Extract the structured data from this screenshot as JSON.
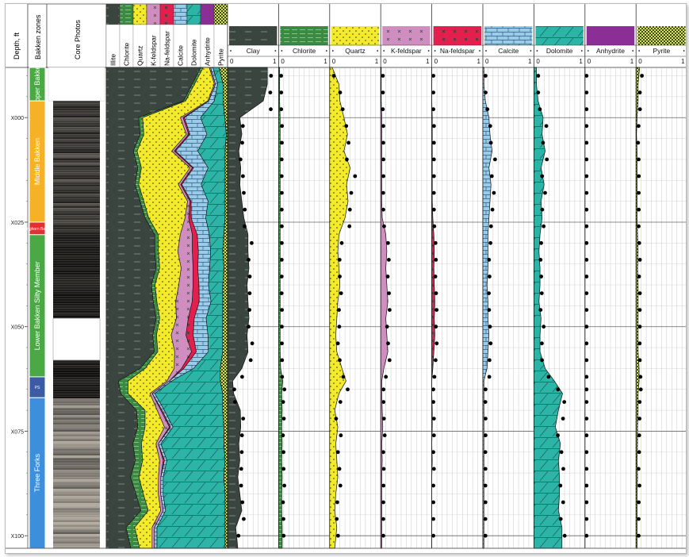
{
  "chart_data": {
    "type": "well-log",
    "depth_axis": {
      "label": "Depth, ft",
      "ticks": [
        "X000",
        "X025",
        "X050",
        "X075",
        "X100"
      ],
      "range": [
        -12,
        103
      ]
    },
    "zones_header": "Bakken zones",
    "photos_header": "Core Photos",
    "zones": [
      {
        "name": "Upper Bakken",
        "top": -12,
        "base": -4,
        "color": "#4aa845"
      },
      {
        "name": "Middle Bakken",
        "top": -4,
        "base": 25,
        "color": "#f6b226"
      },
      {
        "name": "Pronghorn Bakken",
        "top": 25,
        "base": 28,
        "color": "#e23030"
      },
      {
        "name": "Lower Bakken Silty Member",
        "top": 28,
        "base": 62,
        "color": "#4aa845"
      },
      {
        "name": "PS",
        "top": 62,
        "base": 67,
        "color": "#3b5ba6"
      },
      {
        "name": "Three Forks",
        "top": 67,
        "base": 103,
        "color": "#3d8fdc"
      }
    ],
    "stack_legend": [
      "Illite",
      "Chlorite",
      "Quartz",
      "K-feldspar",
      "Na-feldspar",
      "Calcite",
      "Dolomite",
      "Anhydrite",
      "Pyrite"
    ],
    "minerals": [
      {
        "name": "Clay",
        "color": "#3b4540"
      },
      {
        "name": "Chlorite",
        "color": "#3a8a45"
      },
      {
        "name": "Quartz",
        "color": "#f2ea2b"
      },
      {
        "name": "K-feldspar",
        "color": "#d08dc0"
      },
      {
        "name": "Na-feldspar",
        "color": "#e31f4e"
      },
      {
        "name": "Calcite",
        "color": "#9ccbe8"
      },
      {
        "name": "Dolomite",
        "color": "#2cb5a7"
      },
      {
        "name": "Anhydrite",
        "color": "#8b2f96"
      },
      {
        "name": "Pyrite",
        "color": "#8fa13a"
      }
    ],
    "track_scale": {
      "min": "0",
      "max": "1"
    },
    "profiles": {
      "depths": [
        -12,
        -8,
        -4,
        0,
        4,
        8,
        12,
        16,
        20,
        24,
        28,
        32,
        36,
        40,
        44,
        48,
        52,
        56,
        60,
        63,
        66,
        70,
        74,
        78,
        82,
        86,
        90,
        94,
        98,
        103
      ],
      "Clay": [
        0.78,
        0.78,
        0.7,
        0.24,
        0.28,
        0.22,
        0.26,
        0.24,
        0.28,
        0.32,
        0.4,
        0.4,
        0.42,
        0.38,
        0.4,
        0.42,
        0.38,
        0.4,
        0.28,
        0.1,
        0.12,
        0.25,
        0.26,
        0.22,
        0.24,
        0.2,
        0.24,
        0.28,
        0.16,
        0.2
      ],
      "Chlorite": [
        0.02,
        0.02,
        0.02,
        0.03,
        0.03,
        0.03,
        0.03,
        0.03,
        0.03,
        0.03,
        0.03,
        0.03,
        0.03,
        0.03,
        0.03,
        0.03,
        0.03,
        0.03,
        0.04,
        0.08,
        0.06,
        0.07,
        0.06,
        0.07,
        0.06,
        0.07,
        0.06,
        0.06,
        0.07,
        0.07
      ],
      "Quartz": [
        0.05,
        0.18,
        0.2,
        0.28,
        0.35,
        0.28,
        0.4,
        0.33,
        0.36,
        0.3,
        0.18,
        0.16,
        0.18,
        0.2,
        0.16,
        0.14,
        0.12,
        0.14,
        0.24,
        0.32,
        0.18,
        0.1,
        0.16,
        0.12,
        0.14,
        0.16,
        0.12,
        0.1,
        0.14,
        0.1
      ],
      "K-feldspar": [
        0.01,
        0.01,
        0.01,
        0.02,
        0.02,
        0.02,
        0.02,
        0.02,
        0.02,
        0.03,
        0.1,
        0.12,
        0.1,
        0.12,
        0.14,
        0.1,
        0.12,
        0.14,
        0.06,
        0.02,
        0.02,
        0.03,
        0.04,
        0.02,
        0.03,
        0.02,
        0.02,
        0.02,
        0.02,
        0.02
      ],
      "Na-feldspar": [
        0.0,
        0.0,
        0.0,
        0.01,
        0.01,
        0.01,
        0.01,
        0.01,
        0.01,
        0.02,
        0.04,
        0.05,
        0.04,
        0.05,
        0.06,
        0.05,
        0.06,
        0.04,
        0.02,
        0.0,
        0.0,
        0.01,
        0.01,
        0.0,
        0.01,
        0.0,
        0.0,
        0.0,
        0.0,
        0.0
      ],
      "Calcite": [
        0.02,
        0.02,
        0.05,
        0.12,
        0.14,
        0.18,
        0.12,
        0.16,
        0.14,
        0.12,
        0.1,
        0.1,
        0.1,
        0.08,
        0.1,
        0.1,
        0.12,
        0.1,
        0.08,
        0.02,
        0.02,
        0.02,
        0.02,
        0.02,
        0.02,
        0.02,
        0.02,
        0.02,
        0.02,
        0.02
      ],
      "Dolomite": [
        0.05,
        0.05,
        0.08,
        0.18,
        0.16,
        0.22,
        0.14,
        0.2,
        0.14,
        0.16,
        0.12,
        0.1,
        0.12,
        0.12,
        0.1,
        0.14,
        0.12,
        0.12,
        0.22,
        0.4,
        0.56,
        0.48,
        0.42,
        0.52,
        0.48,
        0.5,
        0.5,
        0.48,
        0.55,
        0.55
      ],
      "Anhydrite": [
        0.0,
        0.0,
        0.0,
        0.0,
        0.0,
        0.0,
        0.0,
        0.0,
        0.0,
        0.0,
        0.0,
        0.0,
        0.0,
        0.0,
        0.0,
        0.0,
        0.0,
        0.0,
        0.0,
        0.0,
        0.0,
        0.0,
        0.0,
        0.0,
        0.0,
        0.0,
        0.0,
        0.0,
        0.0,
        0.0
      ],
      "Pyrite": [
        0.07,
        0.04,
        0.04,
        0.02,
        0.01,
        0.02,
        0.02,
        0.02,
        0.02,
        0.02,
        0.03,
        0.04,
        0.03,
        0.04,
        0.04,
        0.04,
        0.04,
        0.04,
        0.06,
        0.06,
        0.04,
        0.04,
        0.03,
        0.03,
        0.02,
        0.03,
        0.02,
        0.02,
        0.02,
        0.02
      ]
    }
  }
}
